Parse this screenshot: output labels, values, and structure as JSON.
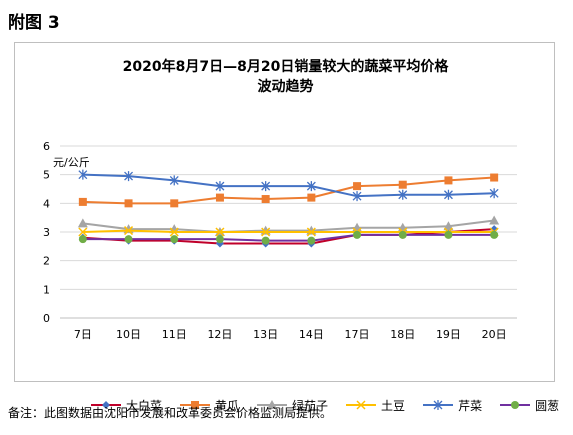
{
  "figure_label": "附图 3",
  "note": "备注：此图数据由沈阳市发展和改革委员会价格监测局提供。",
  "chart_data": {
    "type": "line",
    "title_line1": "2020年8月7日—8月20日销量较大的蔬菜平均价格",
    "title_line2": "波动趋势",
    "ylabel": "元/公斤",
    "ylim": [
      0,
      6
    ],
    "yticks": [
      "0",
      "1",
      "2",
      "3",
      "4",
      "5",
      "6"
    ],
    "categories": [
      "7日",
      "10日",
      "11日",
      "12日",
      "13日",
      "14日",
      "17日",
      "18日",
      "19日",
      "20日"
    ],
    "grid": true,
    "legend_position": "bottom",
    "series": [
      {
        "name": "大白菜",
        "color": "#C0002A",
        "marker": "diamond",
        "markerColor": "#4472C4",
        "values": [
          2.8,
          2.7,
          2.7,
          2.6,
          2.6,
          2.6,
          2.9,
          2.9,
          3.0,
          3.1
        ]
      },
      {
        "name": "黄瓜",
        "color": "#ED7D31",
        "marker": "square",
        "markerColor": "#ED7D31",
        "values": [
          4.05,
          4.0,
          4.0,
          4.2,
          4.15,
          4.2,
          4.6,
          4.65,
          4.8,
          4.9
        ]
      },
      {
        "name": "绿茄子",
        "color": "#A5A5A5",
        "marker": "triangle",
        "markerColor": "#A5A5A5",
        "values": [
          3.3,
          3.1,
          3.1,
          3.0,
          3.05,
          3.05,
          3.15,
          3.15,
          3.2,
          3.4
        ]
      },
      {
        "name": "土豆",
        "color": "#FFC000",
        "marker": "x",
        "markerColor": "#FFC000",
        "values": [
          3.0,
          3.05,
          3.0,
          3.0,
          3.0,
          3.0,
          3.0,
          3.0,
          3.0,
          3.0
        ]
      },
      {
        "name": "芹菜",
        "color": "#4472C4",
        "marker": "star",
        "markerColor": "#4472C4",
        "values": [
          5.0,
          4.95,
          4.8,
          4.6,
          4.6,
          4.6,
          4.25,
          4.3,
          4.3,
          4.35
        ]
      },
      {
        "name": "圆葱",
        "color": "#7030A0",
        "marker": "circle",
        "markerColor": "#70AD47",
        "values": [
          2.75,
          2.75,
          2.75,
          2.75,
          2.7,
          2.7,
          2.9,
          2.9,
          2.9,
          2.9
        ]
      }
    ]
  }
}
